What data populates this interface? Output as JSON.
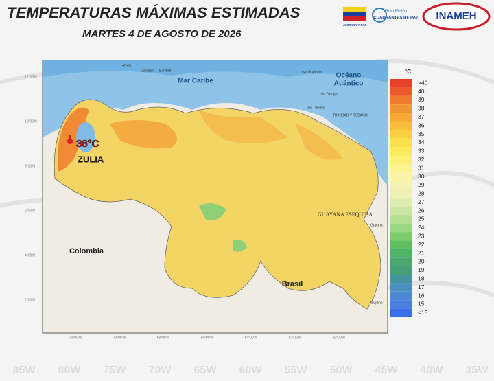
{
  "header": {
    "title": "TEMPERATURAS MÁXIMAS ESTIMADAS",
    "subtitle": "MARTES 4 DE AGOSTO  DE 2026"
  },
  "logos": {
    "justicia": "JUSTICIA Y PAZ",
    "cuadrantes_1": "Gran Misión",
    "cuadrantes_2": "CUADRANTES DE PAZ",
    "inameh": "INAMEH"
  },
  "map": {
    "sea_1": "Mar Caribe",
    "ocean_1": "Océano",
    "ocean_2": "Atlántico",
    "colombia": "Colombia",
    "brasil": "Brasil",
    "guayana": "GUAYANA ESEQUIBA",
    "islands": [
      "Aruba",
      "Curazao",
      "Bonaire",
      "Isla Granada",
      "Isla Trinidad",
      "Isla Tobago",
      "TRINIDAD Y TOBAGO",
      "Guyana",
      "Guyana"
    ],
    "highlight": {
      "value": "38°C",
      "state": "ZULIA"
    },
    "lat_labels": [
      "12°00'N",
      "10°00'N",
      "8°00'N",
      "6°00'N",
      "4°00'N",
      "2°00'N"
    ],
    "lon_labels": [
      "72°00'W",
      "70°00'W",
      "68°00'W",
      "66°00'W",
      "64°00'W",
      "62°00'W",
      "60°00'W"
    ]
  },
  "legend": {
    "unit": "°C",
    "items": [
      {
        "label": ">40",
        "color": "#e8412a"
      },
      {
        "label": "40",
        "color": "#ec5a2c"
      },
      {
        "label": "39",
        "color": "#f07a30"
      },
      {
        "label": "38",
        "color": "#f39533"
      },
      {
        "label": "37",
        "color": "#f6ab37"
      },
      {
        "label": "36",
        "color": "#f8bd3b"
      },
      {
        "label": "35",
        "color": "#fad040"
      },
      {
        "label": "34",
        "color": "#fbe04a"
      },
      {
        "label": "33",
        "color": "#fcea5c"
      },
      {
        "label": "32",
        "color": "#fdf075"
      },
      {
        "label": "31",
        "color": "#fdf38e"
      },
      {
        "label": "30",
        "color": "#fcf4a5"
      },
      {
        "label": "29",
        "color": "#f6f2b4"
      },
      {
        "label": "28",
        "color": "#eef0b4"
      },
      {
        "label": "27",
        "color": "#dfedb0"
      },
      {
        "label": "26",
        "color": "#cce7a3"
      },
      {
        "label": "25",
        "color": "#b5df92"
      },
      {
        "label": "24",
        "color": "#9ad67f"
      },
      {
        "label": "23",
        "color": "#7ecb6e"
      },
      {
        "label": "22",
        "color": "#62c064"
      },
      {
        "label": "21",
        "color": "#4fb466"
      },
      {
        "label": "20",
        "color": "#48a870"
      },
      {
        "label": "19",
        "color": "#45a07a"
      },
      {
        "label": "18",
        "color": "#4495a0"
      },
      {
        "label": "17",
        "color": "#4a8fc0"
      },
      {
        "label": "16",
        "color": "#4c89d4"
      },
      {
        "label": "15",
        "color": "#4a7fe0"
      },
      {
        "label": "<15",
        "color": "#3a6fe8"
      }
    ]
  },
  "background": {
    "labels": [
      "85W",
      "80W",
      "75W",
      "70W",
      "65W",
      "60W",
      "55W",
      "50W",
      "45W",
      "40W",
      "35W"
    ]
  }
}
